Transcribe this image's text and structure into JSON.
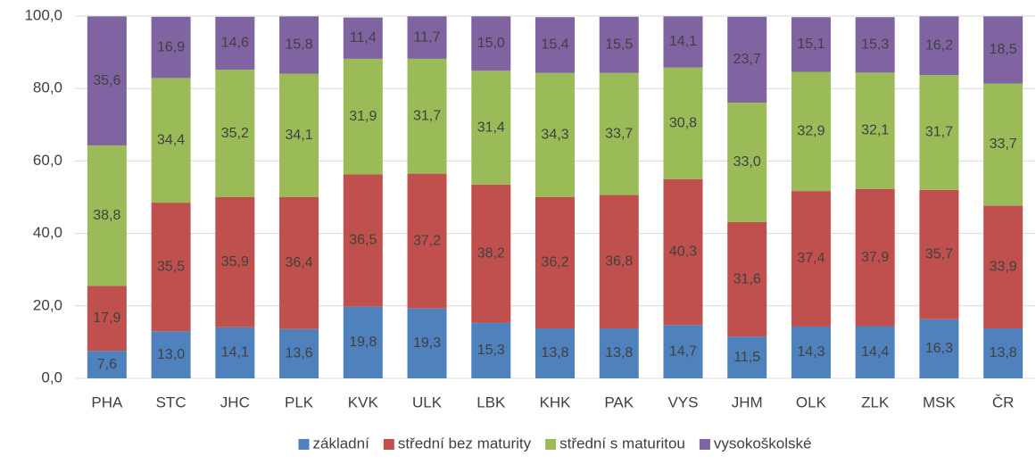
{
  "chart_data": {
    "type": "stacked_bar",
    "categories": [
      "PHA",
      "STC",
      "JHC",
      "PLK",
      "KVK",
      "ULK",
      "LBK",
      "KHK",
      "PAK",
      "VYS",
      "JHM",
      "OLK",
      "ZLK",
      "MSK",
      "ČR"
    ],
    "series": [
      {
        "name": "základní",
        "color": "#4f81bd",
        "values": [
          7.6,
          13.0,
          14.1,
          13.6,
          19.8,
          19.3,
          15.3,
          13.8,
          13.8,
          14.7,
          11.5,
          14.3,
          14.4,
          16.3,
          13.8
        ],
        "value_labels": [
          "7,6",
          "13,0",
          "14,1",
          "13,6",
          "19,8",
          "19,3",
          "15,3",
          "13,8",
          "13,8",
          "14,7",
          "11,5",
          "14,3",
          "14,4",
          "16,3",
          "13,8"
        ]
      },
      {
        "name": "střední bez maturity",
        "color": "#c0504d",
        "values": [
          17.9,
          35.5,
          35.9,
          36.4,
          36.5,
          37.2,
          38.2,
          36.2,
          36.8,
          40.3,
          31.6,
          37.4,
          37.9,
          35.7,
          33.9
        ],
        "value_labels": [
          "17,9",
          "35,5",
          "35,9",
          "36,4",
          "36,5",
          "37,2",
          "38,2",
          "36,2",
          "36,8",
          "40,3",
          "31,6",
          "37,4",
          "37,9",
          "35,7",
          "33,9"
        ]
      },
      {
        "name": "střední s maturitou",
        "color": "#9bbb59",
        "values": [
          38.8,
          34.4,
          35.2,
          34.1,
          31.9,
          31.7,
          31.4,
          34.3,
          33.7,
          30.8,
          33.0,
          32.9,
          32.1,
          31.7,
          33.7
        ],
        "value_labels": [
          "38,8",
          "34,4",
          "35,2",
          "34,1",
          "31,9",
          "31,7",
          "31,4",
          "34,3",
          "33,7",
          "30,8",
          "33,0",
          "32,9",
          "32,1",
          "31,7",
          "33,7"
        ]
      },
      {
        "name": "vysokoškolské",
        "color": "#8064a2",
        "values": [
          35.6,
          16.9,
          14.6,
          15.8,
          11.4,
          11.7,
          15.0,
          15.4,
          15.5,
          14.1,
          23.7,
          15.1,
          15.3,
          16.2,
          18.5
        ],
        "value_labels": [
          "35,6",
          "16,9",
          "14,6",
          "15,8",
          "11,4",
          "11,7",
          "15,0",
          "15,4",
          "15,5",
          "14,1",
          "23,7",
          "15,1",
          "15,3",
          "16,2",
          "18,5"
        ]
      }
    ],
    "ylim": [
      0,
      100
    ],
    "yticks": [
      {
        "value": 0,
        "label": "0,0"
      },
      {
        "value": 20,
        "label": "20,0"
      },
      {
        "value": 40,
        "label": "40,0"
      },
      {
        "value": 60,
        "label": "60,0"
      },
      {
        "value": 80,
        "label": "80,0"
      },
      {
        "value": 100,
        "label": "100,0"
      }
    ],
    "grid": true,
    "legend": "bottom"
  }
}
